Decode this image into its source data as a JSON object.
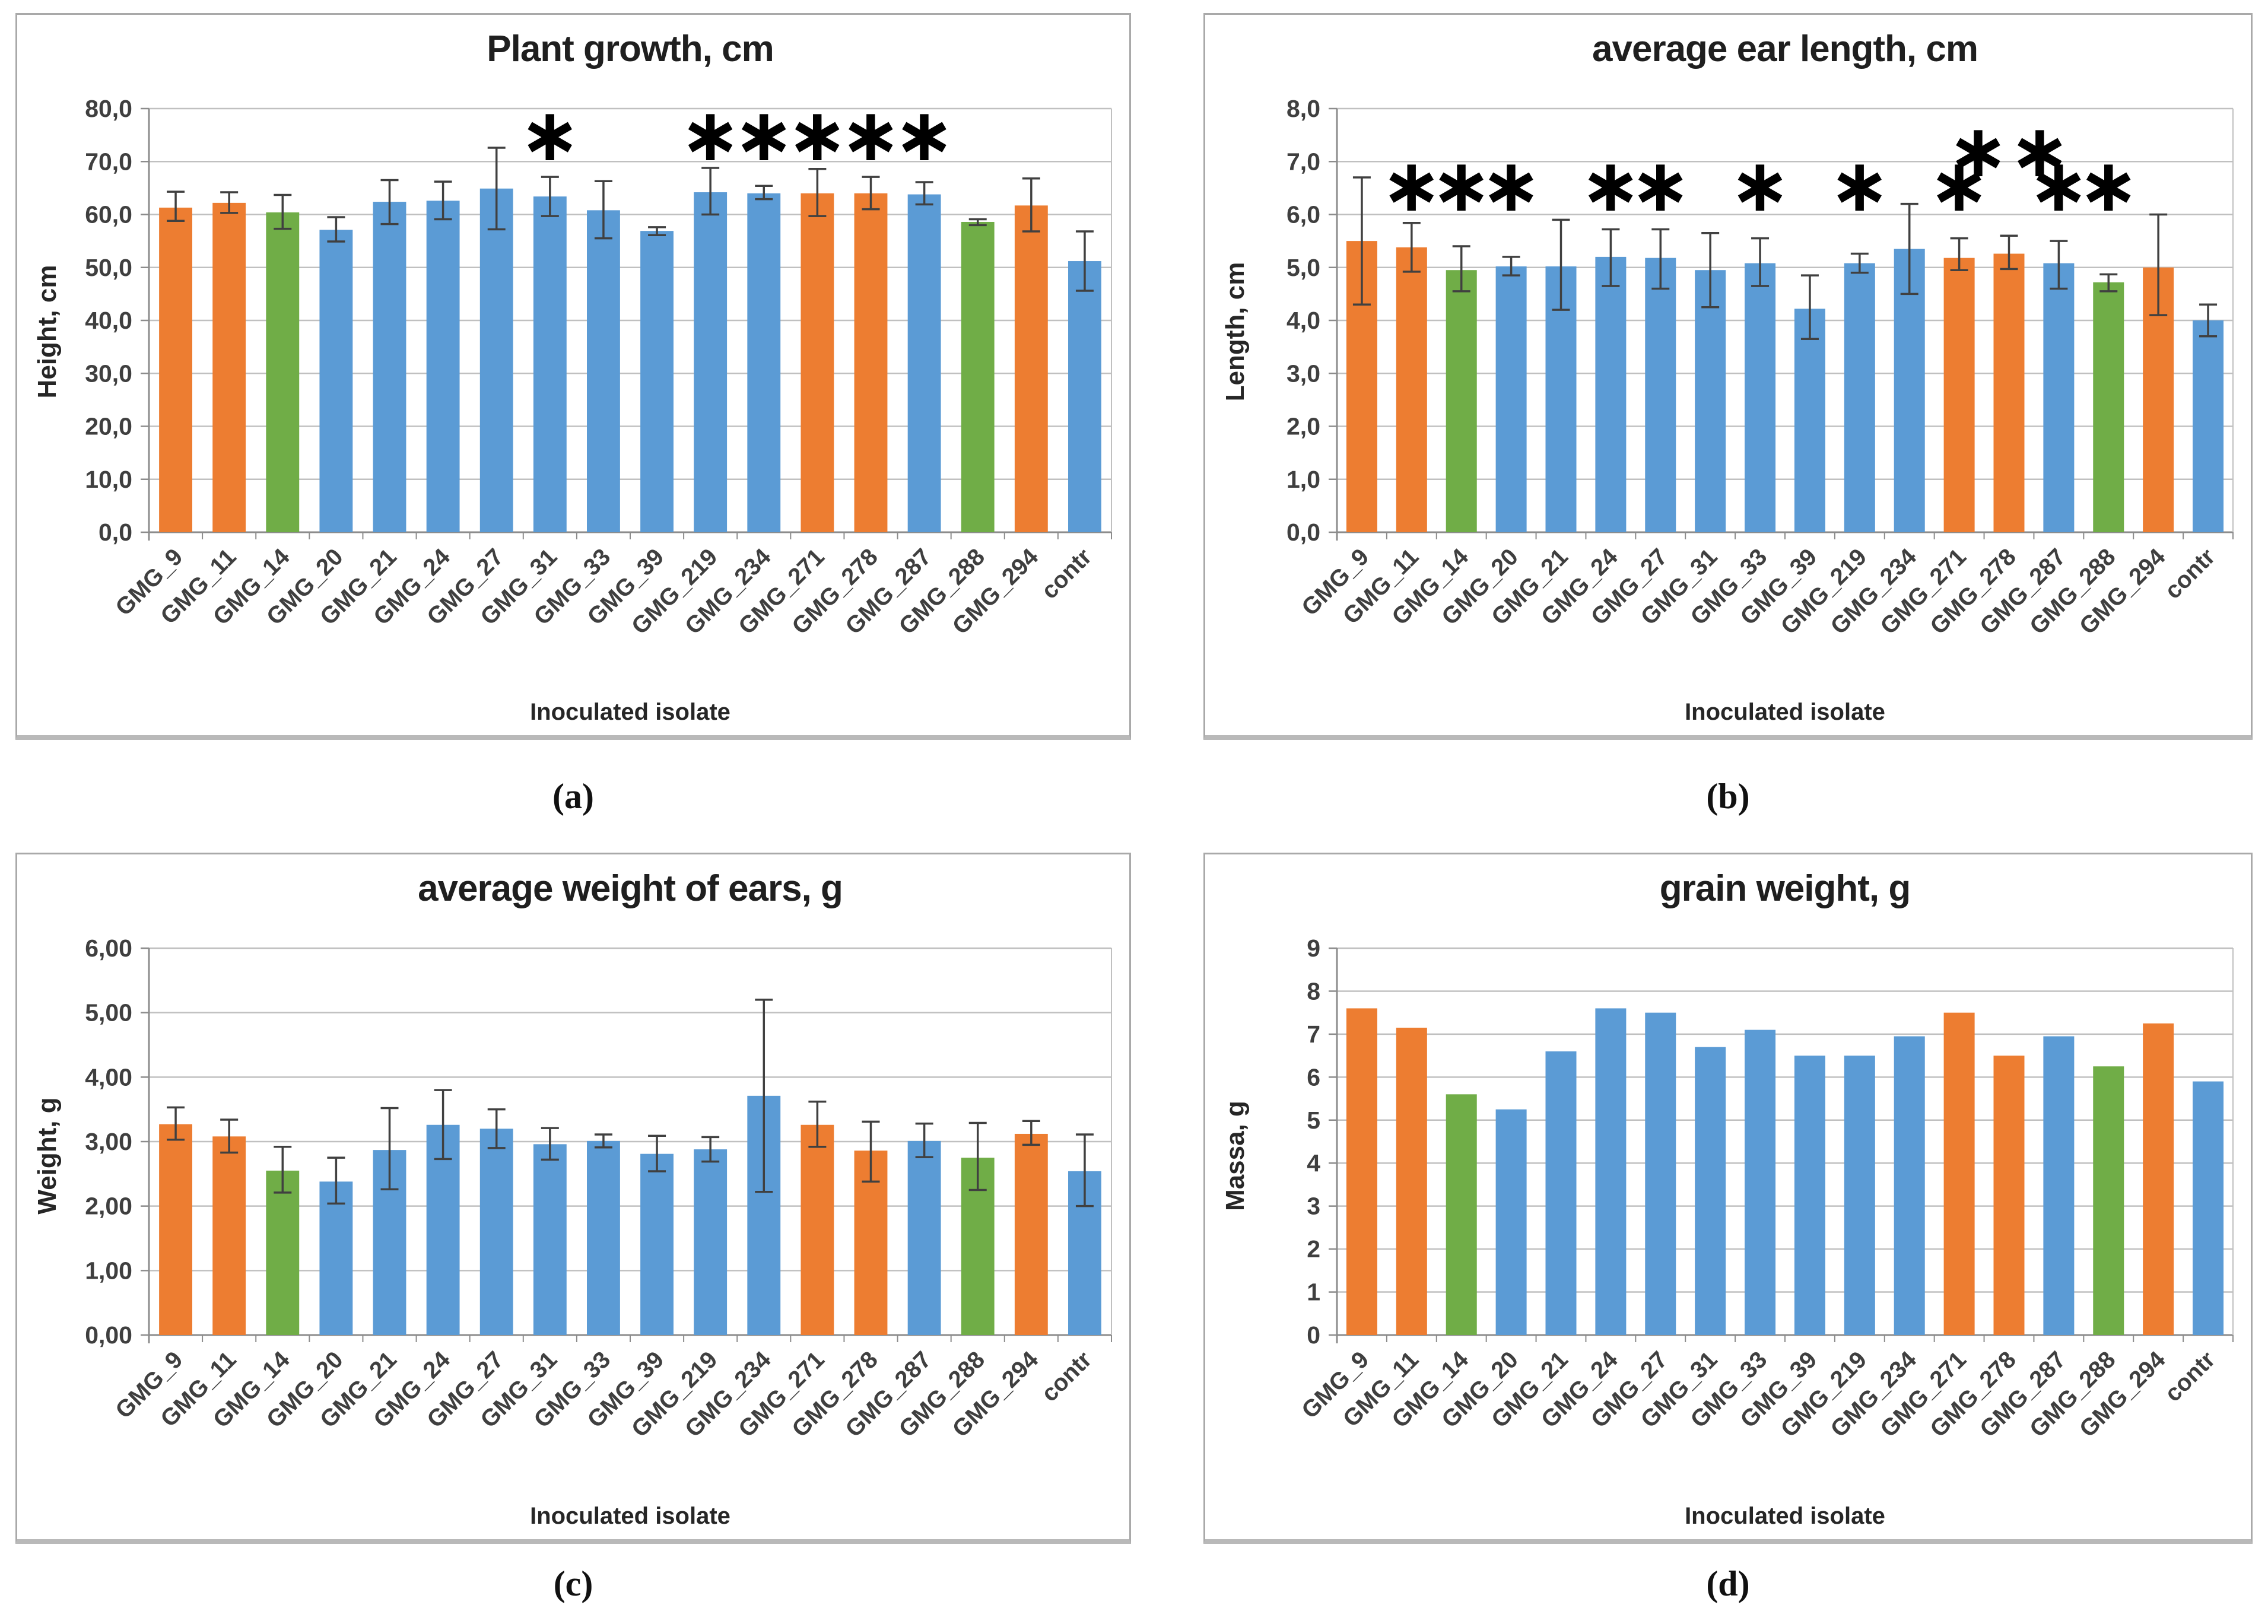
{
  "palette": {
    "blue": "#5B9BD5",
    "orange": "#ED7D31",
    "green": "#70AD47",
    "error_bar": "#404040",
    "gridline": "#C0C0C0",
    "axis": "#8C8C8C",
    "title_color": "#1F1F1F"
  },
  "chart_data": [
    {
      "id": "a",
      "type": "bar",
      "title": "Plant growth, cm",
      "ylabel": "Height, cm",
      "xlabel": "Inoculated isolate",
      "caption": "(a)",
      "ylim": [
        0,
        80
      ],
      "ystep": 10,
      "ytick_labels": [
        "0,0",
        "10,0",
        "20,0",
        "30,0",
        "40,0",
        "50,0",
        "60,0",
        "70,0",
        "80,0"
      ],
      "grid": true,
      "legend": "none",
      "categories": [
        "GMG_9",
        "GMG_11",
        "GMG_14",
        "GMG_20",
        "GMG_21",
        "GMG_24",
        "GMG_27",
        "GMG_31",
        "GMG_33",
        "GMG_39",
        "GMG_219",
        "GMG_234",
        "GMG_271",
        "GMG_278",
        "GMG_287",
        "GMG_288",
        "GMG_294",
        "contr"
      ],
      "bar_colors": [
        "orange",
        "orange",
        "green",
        "blue",
        "blue",
        "blue",
        "blue",
        "blue",
        "blue",
        "blue",
        "blue",
        "blue",
        "orange",
        "orange",
        "blue",
        "green",
        "orange",
        "blue"
      ],
      "values": [
        61.3,
        62.2,
        60.4,
        57.1,
        62.4,
        62.6,
        64.9,
        63.4,
        60.8,
        56.9,
        64.2,
        64.0,
        64.0,
        64.0,
        63.8,
        58.6,
        61.7,
        51.2
      ],
      "errors": [
        [
          58.8,
          64.3
        ],
        [
          60.3,
          64.2
        ],
        [
          57.3,
          63.7
        ],
        [
          54.9,
          59.5
        ],
        [
          58.2,
          66.5
        ],
        [
          59.1,
          66.2
        ],
        [
          57.2,
          72.6
        ],
        [
          59.7,
          67.1
        ],
        [
          55.5,
          66.3
        ],
        [
          56.1,
          57.6
        ],
        [
          60.0,
          68.8
        ],
        [
          62.9,
          65.4
        ],
        [
          59.7,
          68.6
        ],
        [
          61.0,
          67.1
        ],
        [
          61.9,
          66.1
        ],
        [
          58.0,
          59.1
        ],
        [
          56.8,
          66.8
        ],
        [
          45.6,
          56.8
        ]
      ],
      "asterisk_y": 74.5,
      "asterisks": [
        {
          "i": 7,
          "text": "*"
        },
        {
          "i": 10,
          "text": "*"
        },
        {
          "i": 11,
          "text": "*"
        },
        {
          "i": 12,
          "text": "*"
        },
        {
          "i": 13,
          "text": "*"
        },
        {
          "i": 14,
          "text": "*"
        }
      ]
    },
    {
      "id": "b",
      "type": "bar",
      "title": "average ear length, cm",
      "ylabel": "Length, cm",
      "xlabel": "Inoculated isolate",
      "caption": "(b)",
      "ylim": [
        0,
        8
      ],
      "ystep": 1,
      "ytick_labels": [
        "0,0",
        "1,0",
        "2,0",
        "3,0",
        "4,0",
        "5,0",
        "6,0",
        "7,0",
        "8,0"
      ],
      "grid": true,
      "legend": "none",
      "categories": [
        "GMG_9",
        "GMG_11",
        "GMG_14",
        "GMG_20",
        "GMG_21",
        "GMG_24",
        "GMG_27",
        "GMG_31",
        "GMG_33",
        "GMG_39",
        "GMG_219",
        "GMG_234",
        "GMG_271",
        "GMG_278",
        "GMG_287",
        "GMG_288",
        "GMG_294",
        "contr"
      ],
      "bar_colors": [
        "orange",
        "orange",
        "green",
        "blue",
        "blue",
        "blue",
        "blue",
        "blue",
        "blue",
        "blue",
        "blue",
        "blue",
        "orange",
        "orange",
        "blue",
        "green",
        "orange",
        "blue"
      ],
      "values": [
        5.5,
        5.38,
        4.95,
        5.02,
        5.02,
        5.2,
        5.18,
        4.95,
        5.08,
        4.22,
        5.08,
        5.35,
        5.18,
        5.26,
        5.08,
        4.72,
        5.0,
        4.0
      ],
      "errors": [
        [
          4.3,
          6.7
        ],
        [
          4.92,
          5.84
        ],
        [
          4.55,
          5.4
        ],
        [
          4.85,
          5.2
        ],
        [
          4.2,
          5.9
        ],
        [
          4.65,
          5.72
        ],
        [
          4.6,
          5.72
        ],
        [
          4.25,
          5.65
        ],
        [
          4.65,
          5.55
        ],
        [
          3.65,
          4.85
        ],
        [
          4.9,
          5.26
        ],
        [
          4.5,
          6.2
        ],
        [
          4.95,
          5.55
        ],
        [
          4.97,
          5.6
        ],
        [
          4.6,
          5.5
        ],
        [
          4.55,
          4.87
        ],
        [
          4.1,
          6.0
        ],
        [
          3.7,
          4.3
        ]
      ],
      "asterisk_y": 6.5,
      "asterisks": [
        {
          "i": 1,
          "text": "*"
        },
        {
          "i": 2,
          "text": "*"
        },
        {
          "i": 3,
          "text": "*"
        },
        {
          "i": 5,
          "text": "*"
        },
        {
          "i": 6,
          "text": "*"
        },
        {
          "i": 8,
          "text": "*"
        },
        {
          "i": 10,
          "text": "*"
        },
        {
          "i": 12,
          "text": "*"
        },
        {
          "i": 13,
          "text": "**",
          "y": 7.15
        },
        {
          "i": 14,
          "text": "*"
        },
        {
          "i": 15,
          "text": "*"
        }
      ]
    },
    {
      "id": "c",
      "type": "bar",
      "title": "average weight of ears, g",
      "ylabel": "Weight, g",
      "xlabel": "Inoculated isolate",
      "caption": "(c)",
      "ylim": [
        0,
        6
      ],
      "ystep": 1,
      "ytick_labels": [
        "0,00",
        "1,00",
        "2,00",
        "3,00",
        "4,00",
        "5,00",
        "6,00"
      ],
      "grid": true,
      "legend": "none",
      "categories": [
        "GMG_9",
        "GMG_11",
        "GMG_14",
        "GMG_20",
        "GMG_21",
        "GMG_24",
        "GMG_27",
        "GMG_31",
        "GMG_33",
        "GMG_39",
        "GMG_219",
        "GMG_234",
        "GMG_271",
        "GMG_278",
        "GMG_287",
        "GMG_288",
        "GMG_294",
        "contr"
      ],
      "bar_colors": [
        "orange",
        "orange",
        "green",
        "blue",
        "blue",
        "blue",
        "blue",
        "blue",
        "blue",
        "blue",
        "blue",
        "blue",
        "orange",
        "orange",
        "blue",
        "green",
        "orange",
        "blue"
      ],
      "values": [
        3.27,
        3.08,
        2.55,
        2.38,
        2.87,
        3.26,
        3.2,
        2.96,
        3.01,
        2.81,
        2.88,
        3.71,
        3.26,
        2.86,
        3.01,
        2.75,
        3.12,
        2.54
      ],
      "errors": [
        [
          3.03,
          3.53
        ],
        [
          2.83,
          3.34
        ],
        [
          2.21,
          2.92
        ],
        [
          2.04,
          2.75
        ],
        [
          2.26,
          3.52
        ],
        [
          2.73,
          3.8
        ],
        [
          2.9,
          3.5
        ],
        [
          2.72,
          3.21
        ],
        [
          2.91,
          3.11
        ],
        [
          2.54,
          3.09
        ],
        [
          2.69,
          3.07
        ],
        [
          2.22,
          5.2
        ],
        [
          2.92,
          3.62
        ],
        [
          2.38,
          3.31
        ],
        [
          2.76,
          3.28
        ],
        [
          2.25,
          3.29
        ],
        [
          2.95,
          3.32
        ],
        [
          2.0,
          3.11
        ]
      ],
      "asterisk_y": null,
      "asterisks": []
    },
    {
      "id": "d",
      "type": "bar",
      "title": "grain weight, g",
      "ylabel": "Massa, g",
      "xlabel": "Inoculated isolate",
      "caption": "(d)",
      "ylim": [
        0,
        9
      ],
      "ystep": 1,
      "ytick_labels": [
        "0",
        "1",
        "2",
        "3",
        "4",
        "5",
        "6",
        "7",
        "8",
        "9"
      ],
      "grid": true,
      "legend": "none",
      "categories": [
        "GMG_9",
        "GMG_11",
        "GMG_14",
        "GMG_20",
        "GMG_21",
        "GMG_24",
        "GMG_27",
        "GMG_31",
        "GMG_33",
        "GMG_39",
        "GMG_219",
        "GMG_234",
        "GMG_271",
        "GMG_278",
        "GMG_287",
        "GMG_288",
        "GMG_294",
        "contr"
      ],
      "bar_colors": [
        "orange",
        "orange",
        "green",
        "blue",
        "blue",
        "blue",
        "blue",
        "blue",
        "blue",
        "blue",
        "blue",
        "blue",
        "orange",
        "orange",
        "blue",
        "green",
        "orange",
        "blue"
      ],
      "values": [
        7.6,
        7.15,
        5.6,
        5.25,
        6.6,
        7.6,
        7.5,
        6.7,
        7.1,
        6.5,
        6.5,
        6.95,
        7.5,
        6.5,
        6.95,
        6.25,
        7.25,
        5.9
      ],
      "errors": null,
      "asterisk_y": null,
      "asterisks": []
    }
  ]
}
